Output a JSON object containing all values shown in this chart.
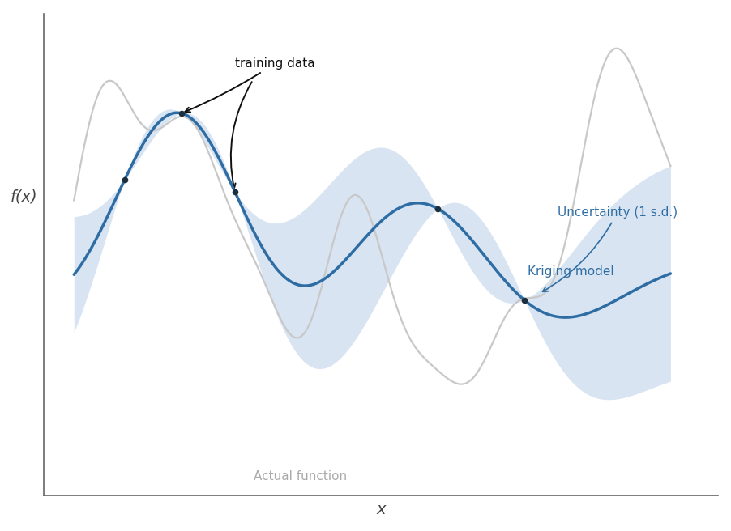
{
  "xlabel": "x",
  "ylabel": "f(x)",
  "bg_color": "#ffffff",
  "kriging_color": "#2e6da4",
  "uncertainty_color": "#b8cfe8",
  "actual_color": "#c8c8c8",
  "training_dot_color": "#1c2f3f",
  "annotation_color": "#111111",
  "label_kriging": "Kriging model",
  "label_uncertainty": "Uncertainty (1 s.d.)",
  "label_actual": "Actual function",
  "label_training": "training data",
  "uncertainty_alpha": 0.55
}
